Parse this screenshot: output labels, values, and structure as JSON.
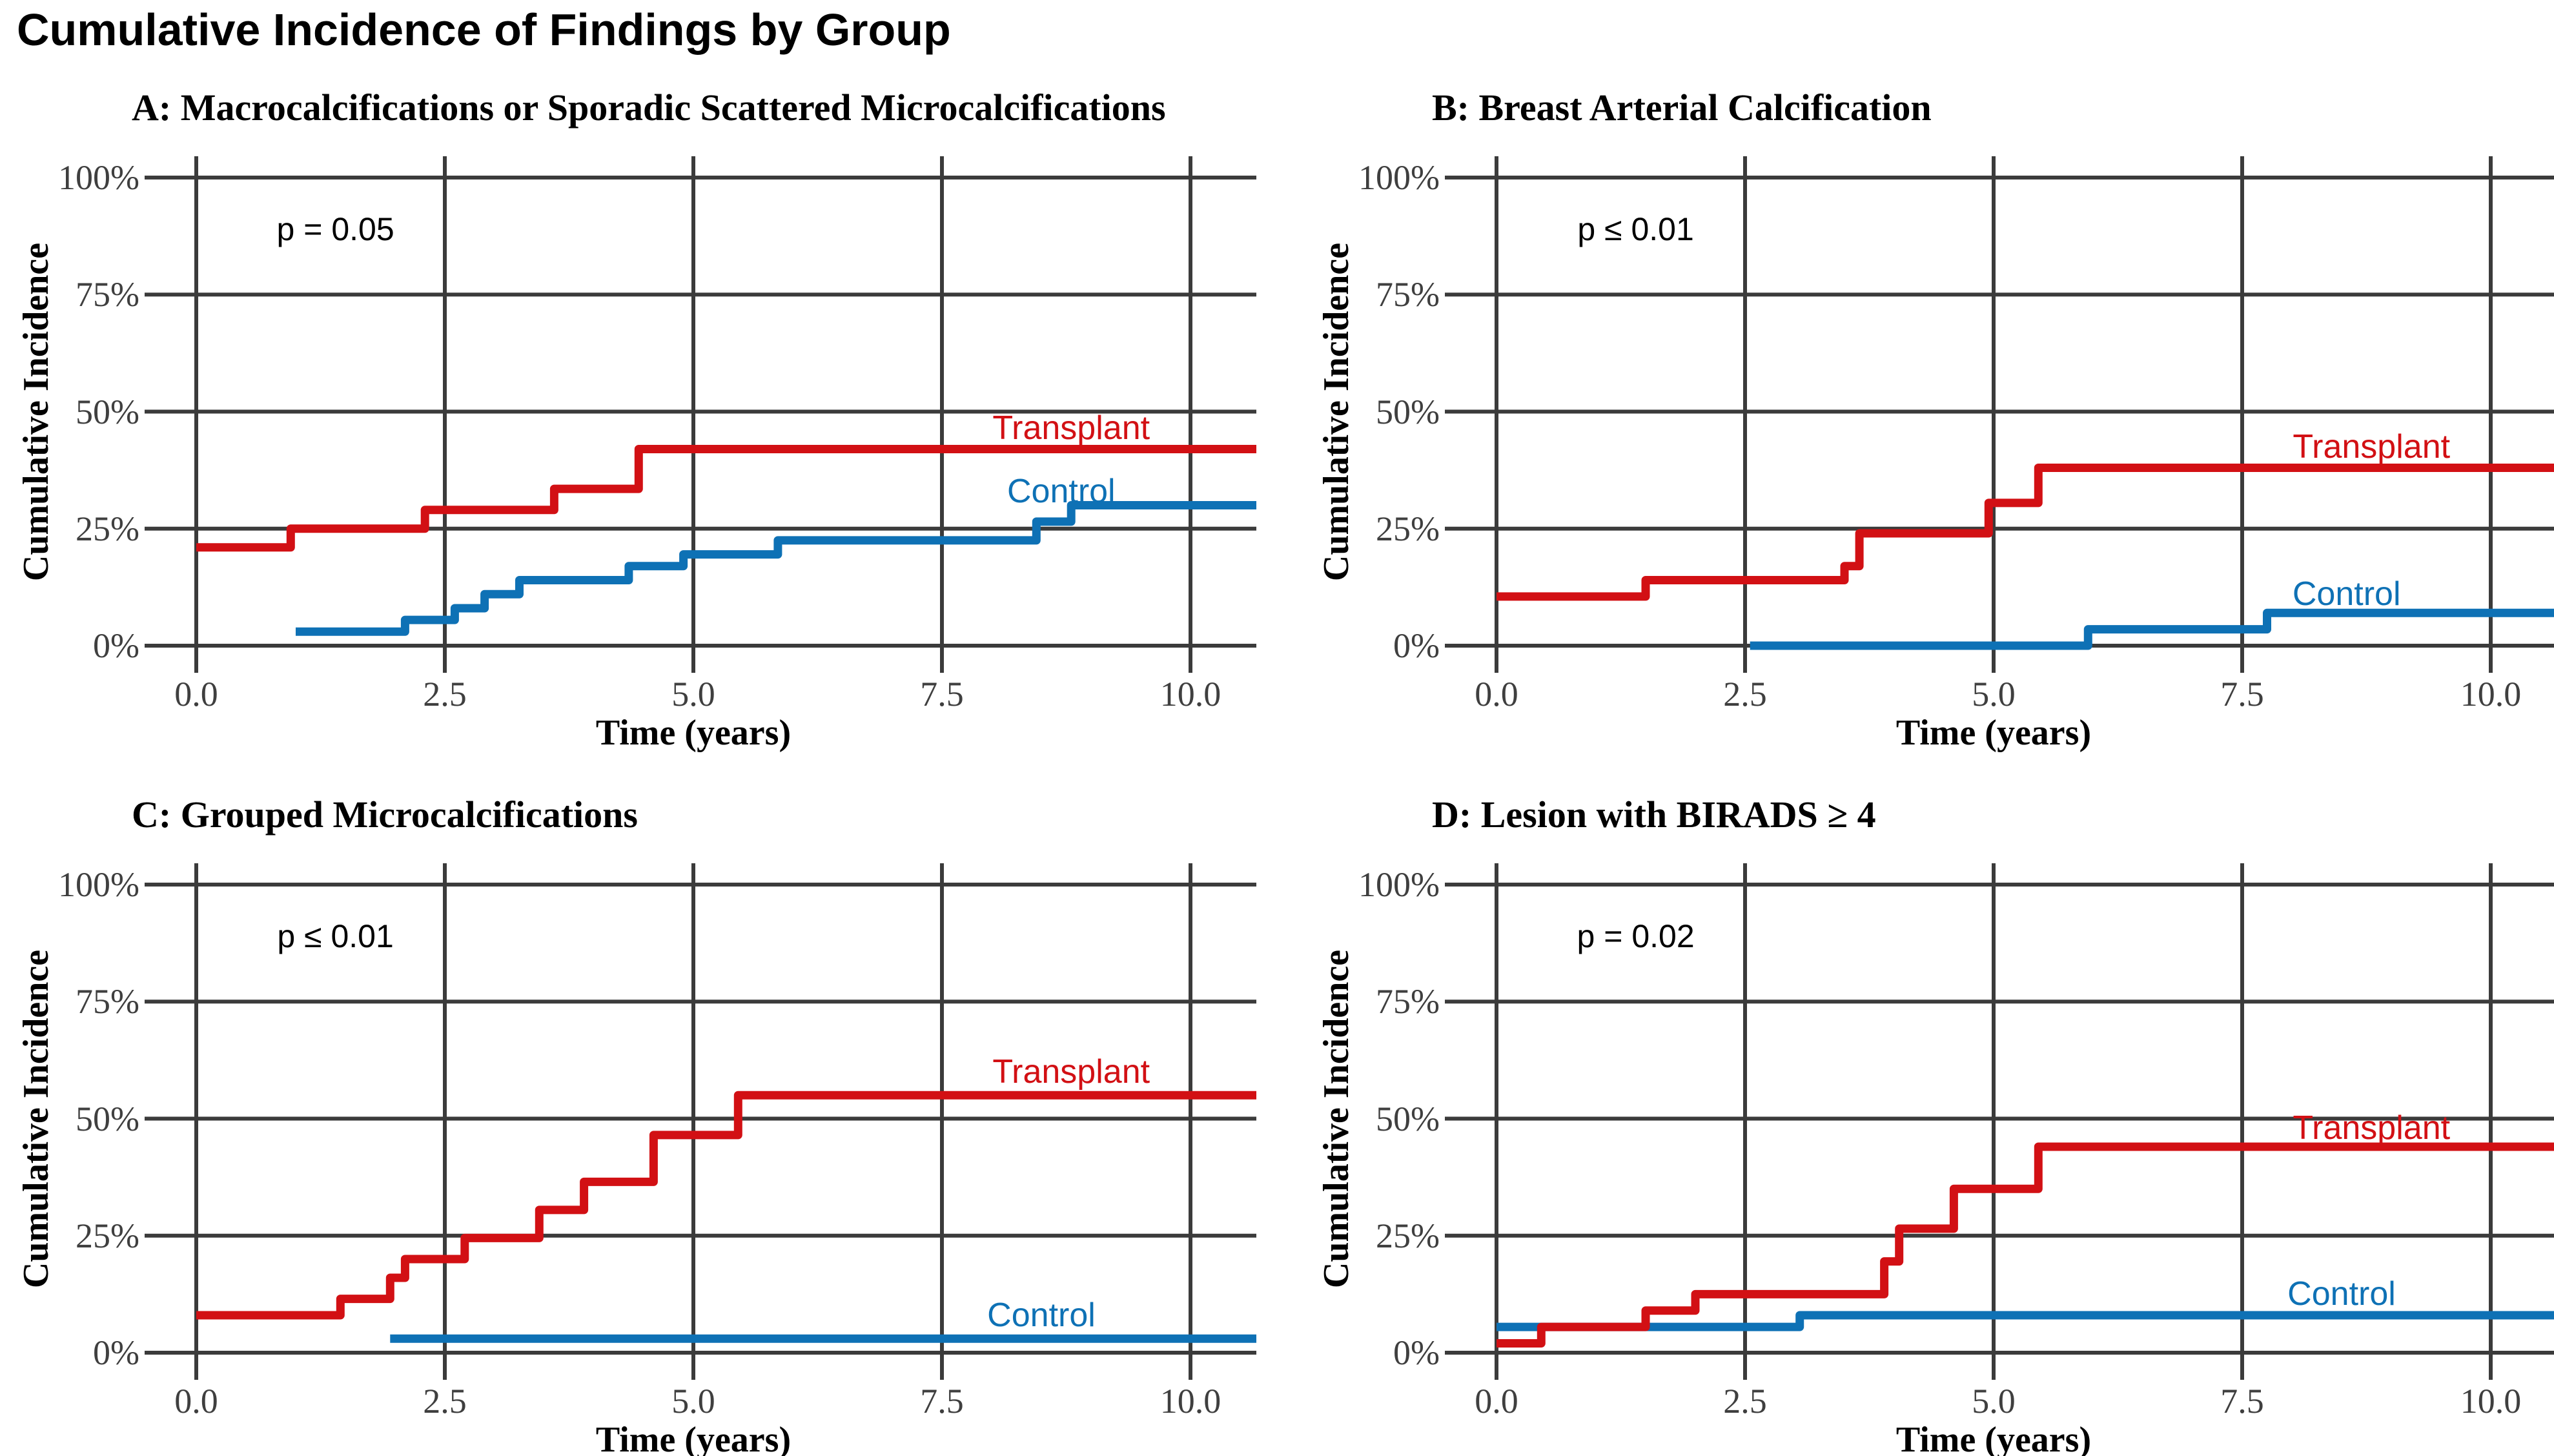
{
  "page": {
    "title": "Cumulative Incidence of Findings by Group"
  },
  "colors": {
    "transplant": "#d21014",
    "control": "#0e71b5",
    "grid": "#3b3b3b",
    "tick_text": "#3f3f3f",
    "title_text": "#000000"
  },
  "axes": {
    "x_label": "Time (years)",
    "y_label": "Cumulative Incidence",
    "x_ticks": [
      {
        "value": 0,
        "label": "0.0"
      },
      {
        "value": 2.5,
        "label": "2.5"
      },
      {
        "value": 5,
        "label": "5.0"
      },
      {
        "value": 7.5,
        "label": "7.5"
      },
      {
        "value": 10,
        "label": "10.0"
      }
    ],
    "y_ticks": [
      {
        "value": 0,
        "label": "0%"
      },
      {
        "value": 25,
        "label": "25%"
      },
      {
        "value": 50,
        "label": "50%"
      },
      {
        "value": 75,
        "label": "75%"
      },
      {
        "value": 100,
        "label": "100%"
      }
    ],
    "x_range_drawn": [
      0,
      10.65
    ],
    "y_range": [
      0,
      100
    ],
    "grid": "on",
    "units": {
      "x": "years",
      "y": "percent cumulative incidence"
    }
  },
  "chart_data": [
    {
      "panel_id": "A",
      "title": "A: Macrocalcifications or Sporadic Scattered Microcalcifications",
      "p_value": "p = 0.05",
      "type": "step",
      "series": [
        {
          "name": "Transplant",
          "color_key": "transplant",
          "start": [
            0,
            21
          ],
          "steps": [
            [
              0.95,
              25
            ],
            [
              2.3,
              29
            ],
            [
              3.6,
              33.5
            ],
            [
              4.45,
              42
            ]
          ],
          "final": 42,
          "label_at": [
            8.8,
            46.5
          ]
        },
        {
          "name": "Control",
          "color_key": "control",
          "start": [
            1.0,
            3
          ],
          "steps": [
            [
              2.1,
              5.5
            ],
            [
              2.6,
              8
            ],
            [
              2.9,
              11
            ],
            [
              3.25,
              14
            ],
            [
              4.35,
              17
            ],
            [
              4.9,
              19.5
            ],
            [
              5.85,
              22.5
            ],
            [
              8.45,
              26.5
            ],
            [
              8.8,
              30
            ]
          ],
          "final": 30,
          "label_at": [
            8.7,
            33
          ]
        }
      ]
    },
    {
      "panel_id": "B",
      "title": "B: Breast Arterial Calcification",
      "p_value": "p ≤ 0.01",
      "type": "step",
      "series": [
        {
          "name": "Transplant",
          "color_key": "transplant",
          "start": [
            0,
            10.5
          ],
          "steps": [
            [
              1.5,
              14
            ],
            [
              3.5,
              17
            ],
            [
              3.65,
              24
            ],
            [
              4.95,
              30.5
            ],
            [
              5.45,
              38
            ]
          ],
          "final": 38,
          "label_at": [
            8.8,
            42.5
          ]
        },
        {
          "name": "Control",
          "color_key": "control",
          "start": [
            2.55,
            0
          ],
          "steps": [
            [
              5.95,
              3.5
            ],
            [
              7.75,
              7
            ]
          ],
          "final": 7,
          "label_at": [
            8.55,
            11
          ]
        }
      ]
    },
    {
      "panel_id": "C",
      "title": "C: Grouped Microcalcifications",
      "p_value": "p ≤ 0.01",
      "type": "step",
      "series": [
        {
          "name": "Transplant",
          "color_key": "transplant",
          "start": [
            0,
            8
          ],
          "steps": [
            [
              1.45,
              11.5
            ],
            [
              1.95,
              16
            ],
            [
              2.1,
              20
            ],
            [
              2.7,
              24.5
            ],
            [
              3.45,
              30.5
            ],
            [
              3.9,
              36.5
            ],
            [
              4.6,
              46.5
            ],
            [
              5.45,
              55
            ]
          ],
          "final": 55,
          "label_at": [
            8.8,
            60
          ]
        },
        {
          "name": "Control",
          "color_key": "control",
          "start": [
            1.95,
            3
          ],
          "steps": [],
          "final": 3,
          "label_at": [
            8.5,
            8
          ]
        }
      ]
    },
    {
      "panel_id": "D",
      "title": "D: Lesion with BIRADS ≥ 4",
      "p_value": "p = 0.02",
      "type": "step",
      "series": [
        {
          "name": "Transplant",
          "color_key": "transplant",
          "start": [
            0,
            2
          ],
          "steps": [
            [
              0.45,
              5.5
            ],
            [
              1.5,
              9
            ],
            [
              2.0,
              12.5
            ],
            [
              3.9,
              19.5
            ],
            [
              4.05,
              26.5
            ],
            [
              4.6,
              35
            ],
            [
              5.45,
              44
            ]
          ],
          "final": 44,
          "label_at": [
            8.8,
            48
          ]
        },
        {
          "name": "Control",
          "color_key": "control",
          "start": [
            0,
            5.5
          ],
          "steps": [
            [
              3.05,
              8
            ]
          ],
          "final": 8,
          "label_at": [
            8.5,
            12.5
          ]
        }
      ]
    }
  ]
}
